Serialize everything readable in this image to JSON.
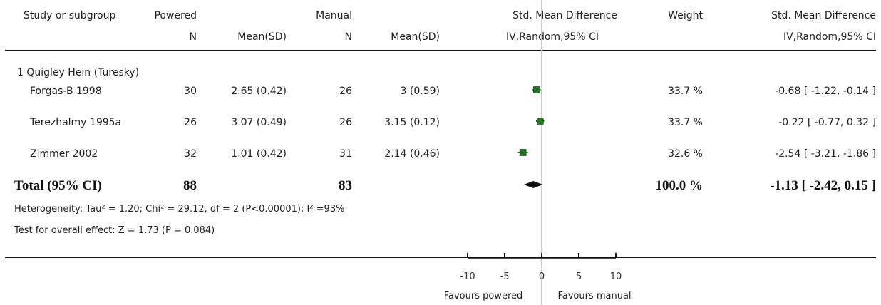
{
  "header": {
    "col_study": "Study or subgroup",
    "col_group1": "Powered",
    "col_group2": "Manual",
    "col_n": "N",
    "col_mean": "Mean(SD)",
    "col_effect": "Std. Mean Difference",
    "col_effect_sub": "IV,Random,95% CI",
    "col_weight": "Weight"
  },
  "subgroup_title": "1 Quigley Hein (Turesky)",
  "studies": [
    {
      "name": "Forgas-B 1998",
      "n1": "30",
      "mean1": "2.65 (0.42)",
      "n2": "26",
      "mean2": "3 (0.59)",
      "weight": "33.7 %",
      "ci_text": "-0.68 [ -1.22, -0.14 ]"
    },
    {
      "name": "Terezhalmy 1995a",
      "n1": "26",
      "mean1": "3.07 (0.49)",
      "n2": "26",
      "mean2": "3.15 (0.12)",
      "weight": "33.7 %",
      "ci_text": "-0.22 [ -0.77, 0.32 ]"
    },
    {
      "name": "Zimmer 2002",
      "n1": "32",
      "mean1": "1.01 (0.42)",
      "n2": "31",
      "mean2": "2.14 (0.46)",
      "weight": "32.6 %",
      "ci_text": "-2.54 [ -3.21, -1.86 ]"
    }
  ],
  "total": {
    "label": "Total (95% CI)",
    "n1": "88",
    "n2": "83",
    "weight": "100.0 %",
    "ci_text": "-1.13 [ -2.42, 0.15 ]"
  },
  "heterogeneity": "Heterogeneity: Tau² = 1.20; Chi² = 29.12, df = 2 (P<0.00001); I² =93%",
  "overall_effect": "Test for overall effect: Z = 1.73 (P = 0.084)",
  "axis": {
    "favours_left": "Favours powered",
    "favours_right": "Favours manual"
  },
  "colors": {
    "marker": "#1a7a1a",
    "line": "#111111",
    "zero_line": "#cccccc"
  },
  "chart_data": {
    "type": "forest",
    "xlim": [
      -10,
      10
    ],
    "ticks": [
      -10,
      -5,
      0,
      5,
      10
    ],
    "tick_labels": [
      "-10",
      "-5",
      "0",
      "5",
      "10"
    ],
    "series": [
      {
        "study": "Forgas-B 1998",
        "estimate": -0.68,
        "ci": [
          -1.22,
          -0.14
        ],
        "weight": 33.7
      },
      {
        "study": "Terezhalmy 1995a",
        "estimate": -0.22,
        "ci": [
          -0.77,
          0.32
        ],
        "weight": 33.7
      },
      {
        "study": "Zimmer 2002",
        "estimate": -2.54,
        "ci": [
          -3.21,
          -1.86
        ],
        "weight": 32.6
      }
    ],
    "pooled": {
      "estimate": -1.13,
      "ci": [
        -2.42,
        0.15
      ],
      "weight": 100.0
    }
  }
}
